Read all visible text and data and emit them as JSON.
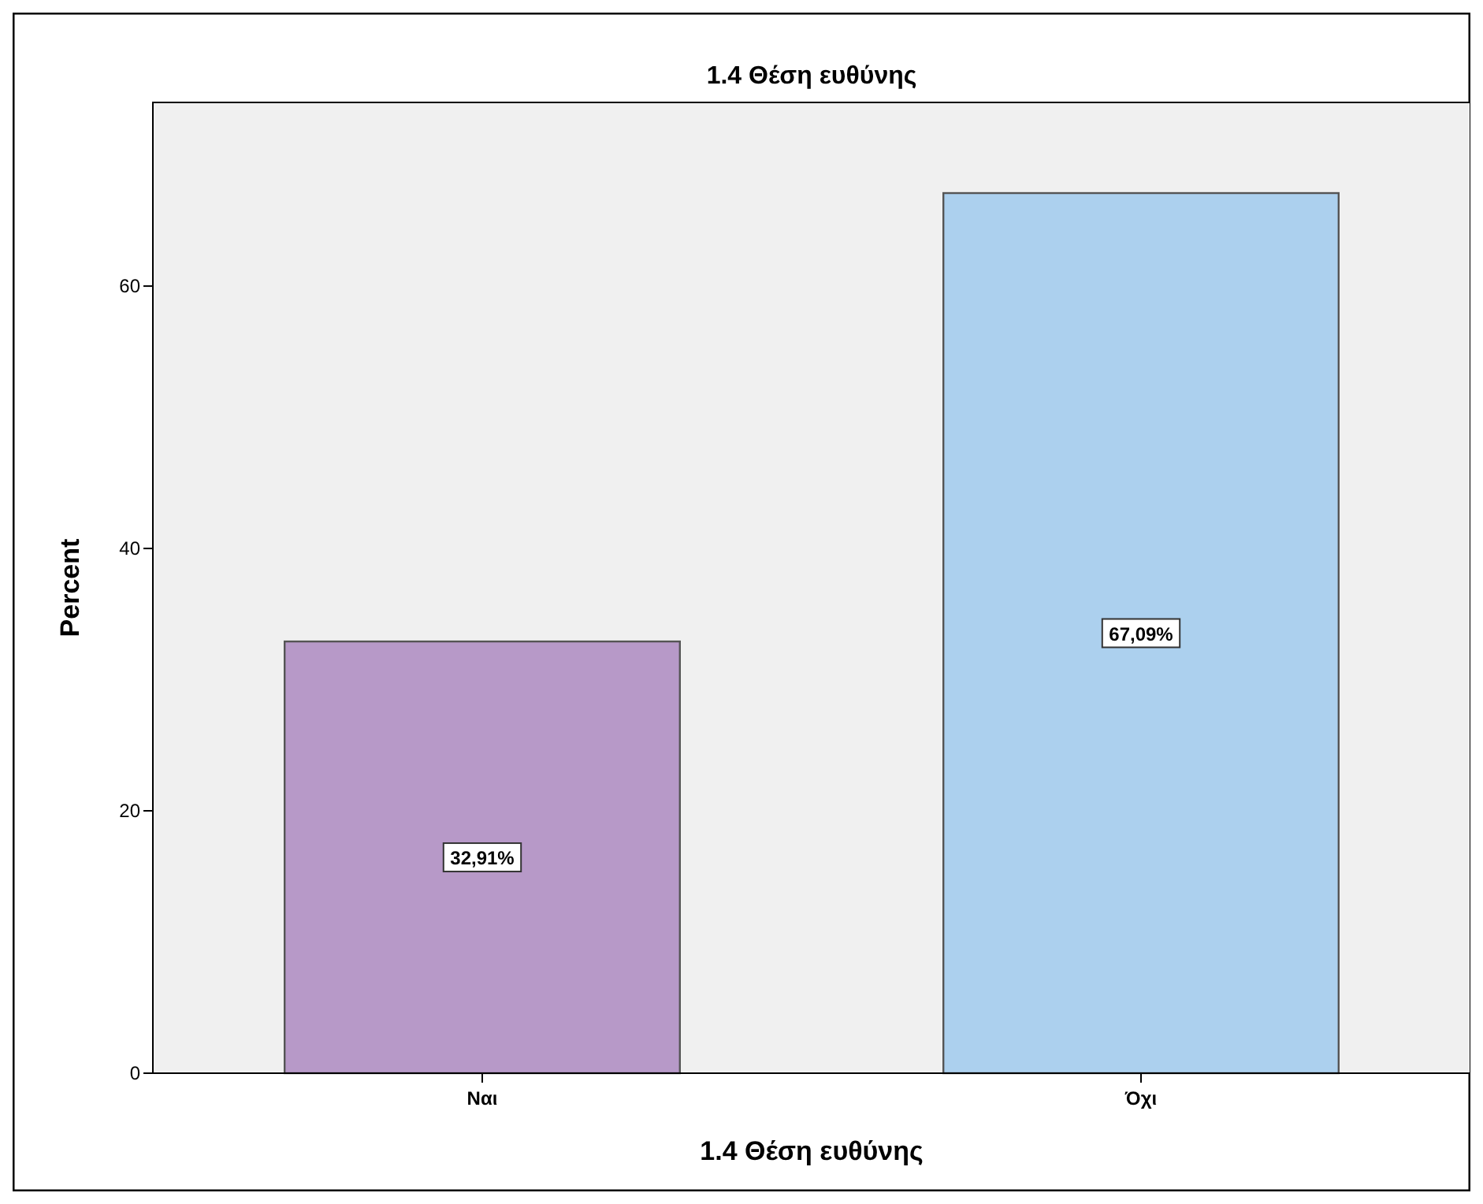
{
  "chart_data": {
    "type": "bar",
    "title": "1.4 Θέση ευθύνης",
    "xlabel": "1.4 Θέση ευθύνης",
    "ylabel": "Percent",
    "categories": [
      "Ναι",
      "Όχι"
    ],
    "values": [
      32.91,
      67.09
    ],
    "colors": [
      "#b799c8",
      "#acd0ee"
    ],
    "value_labels": [
      "32,91%",
      "67,09%"
    ],
    "ylim": [
      0,
      74
    ],
    "yticks": [
      0,
      20,
      40,
      60
    ],
    "grid": false
  }
}
